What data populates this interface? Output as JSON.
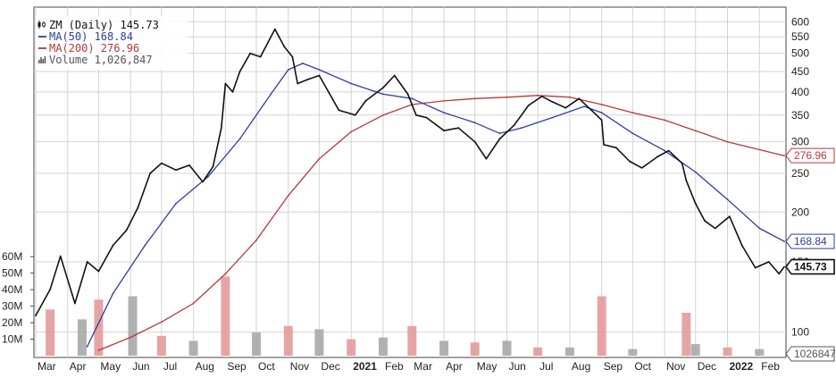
{
  "chart_data": {
    "type": "line",
    "symbol": "ZM",
    "interval": "Daily",
    "last_price": 145.73,
    "legend": [
      {
        "label": "ZM (Daily) 145.73",
        "color": "#111111",
        "icon": "candlestick-icon"
      },
      {
        "label": "MA(50) 168.84",
        "color": "#2c3f9e",
        "icon": "line-dash-icon"
      },
      {
        "label": "MA(200) 276.96",
        "color": "#b33a3a",
        "icon": "line-dash-icon"
      },
      {
        "label": "Volume 1,026,847",
        "color": "#555555",
        "icon": "volume-bars-icon"
      }
    ],
    "price_axis": {
      "scale": "log",
      "range": [
        90,
        620
      ],
      "ticks": [
        100,
        150,
        200,
        250,
        300,
        350,
        400,
        450,
        500,
        550,
        600
      ],
      "tick_labels": [
        "100",
        "150",
        "200",
        "250",
        "300",
        "350",
        "400",
        "450",
        "500",
        "550",
        "600"
      ]
    },
    "volume_axis": {
      "range": [
        0,
        65000000
      ],
      "ticks": [
        10000000,
        20000000,
        30000000,
        40000000,
        50000000,
        60000000
      ],
      "tick_labels": [
        "10M",
        "20M",
        "30M",
        "40M",
        "50M",
        "60M"
      ]
    },
    "x_axis": {
      "range": [
        "2020-03-01",
        "2022-02-25"
      ],
      "ticks": [
        {
          "label": "Mar",
          "date": "2020-03-01",
          "bold": false
        },
        {
          "label": "Apr",
          "date": "2020-04-01",
          "bold": false
        },
        {
          "label": "May",
          "date": "2020-05-01",
          "bold": false
        },
        {
          "label": "Jun",
          "date": "2020-06-01",
          "bold": false
        },
        {
          "label": "Jul",
          "date": "2020-07-01",
          "bold": false
        },
        {
          "label": "Aug",
          "date": "2020-08-01",
          "bold": false
        },
        {
          "label": "Sep",
          "date": "2020-09-01",
          "bold": false
        },
        {
          "label": "Oct",
          "date": "2020-10-01",
          "bold": false
        },
        {
          "label": "Nov",
          "date": "2020-11-01",
          "bold": false
        },
        {
          "label": "Dec",
          "date": "2020-12-01",
          "bold": false
        },
        {
          "label": "2021",
          "date": "2021-01-01",
          "bold": true
        },
        {
          "label": "Feb",
          "date": "2021-02-01",
          "bold": false
        },
        {
          "label": "Mar",
          "date": "2021-03-01",
          "bold": false
        },
        {
          "label": "Apr",
          "date": "2021-04-01",
          "bold": false
        },
        {
          "label": "May",
          "date": "2021-05-01",
          "bold": false
        },
        {
          "label": "Jun",
          "date": "2021-06-01",
          "bold": false
        },
        {
          "label": "Jul",
          "date": "2021-07-01",
          "bold": false
        },
        {
          "label": "Aug",
          "date": "2021-08-01",
          "bold": false
        },
        {
          "label": "Sep",
          "date": "2021-09-01",
          "bold": false
        },
        {
          "label": "Oct",
          "date": "2021-10-01",
          "bold": false
        },
        {
          "label": "Nov",
          "date": "2021-11-01",
          "bold": false
        },
        {
          "label": "Dec",
          "date": "2021-12-01",
          "bold": false
        },
        {
          "label": "2022",
          "date": "2022-01-01",
          "bold": true
        },
        {
          "label": "Feb",
          "date": "2022-02-01",
          "bold": false
        }
      ]
    },
    "series": [
      {
        "name": "ZM (Daily)",
        "kind": "price",
        "color": "#111111",
        "points": [
          {
            "date": "2020-03-01",
            "value": 110
          },
          {
            "date": "2020-03-15",
            "value": 128
          },
          {
            "date": "2020-03-25",
            "value": 155
          },
          {
            "date": "2020-04-08",
            "value": 118
          },
          {
            "date": "2020-04-20",
            "value": 150
          },
          {
            "date": "2020-05-01",
            "value": 142
          },
          {
            "date": "2020-05-15",
            "value": 165
          },
          {
            "date": "2020-05-28",
            "value": 180
          },
          {
            "date": "2020-06-08",
            "value": 205
          },
          {
            "date": "2020-06-20",
            "value": 250
          },
          {
            "date": "2020-07-01",
            "value": 265
          },
          {
            "date": "2020-07-15",
            "value": 255
          },
          {
            "date": "2020-07-28",
            "value": 262
          },
          {
            "date": "2020-08-10",
            "value": 238
          },
          {
            "date": "2020-08-20",
            "value": 260
          },
          {
            "date": "2020-08-28",
            "value": 325
          },
          {
            "date": "2020-09-01",
            "value": 420
          },
          {
            "date": "2020-09-08",
            "value": 400
          },
          {
            "date": "2020-09-15",
            "value": 450
          },
          {
            "date": "2020-09-25",
            "value": 500
          },
          {
            "date": "2020-10-05",
            "value": 490
          },
          {
            "date": "2020-10-19",
            "value": 575
          },
          {
            "date": "2020-10-28",
            "value": 520
          },
          {
            "date": "2020-11-05",
            "value": 490
          },
          {
            "date": "2020-11-10",
            "value": 420
          },
          {
            "date": "2020-11-20",
            "value": 430
          },
          {
            "date": "2020-12-01",
            "value": 440
          },
          {
            "date": "2020-12-10",
            "value": 400
          },
          {
            "date": "2020-12-20",
            "value": 360
          },
          {
            "date": "2021-01-05",
            "value": 350
          },
          {
            "date": "2021-01-15",
            "value": 380
          },
          {
            "date": "2021-02-01",
            "value": 410
          },
          {
            "date": "2021-02-12",
            "value": 440
          },
          {
            "date": "2021-02-25",
            "value": 395
          },
          {
            "date": "2021-03-05",
            "value": 350
          },
          {
            "date": "2021-03-15",
            "value": 345
          },
          {
            "date": "2021-04-01",
            "value": 320
          },
          {
            "date": "2021-04-15",
            "value": 325
          },
          {
            "date": "2021-05-01",
            "value": 300
          },
          {
            "date": "2021-05-12",
            "value": 272
          },
          {
            "date": "2021-05-25",
            "value": 305
          },
          {
            "date": "2021-06-08",
            "value": 330
          },
          {
            "date": "2021-06-22",
            "value": 370
          },
          {
            "date": "2021-07-05",
            "value": 390
          },
          {
            "date": "2021-07-15",
            "value": 378
          },
          {
            "date": "2021-07-28",
            "value": 365
          },
          {
            "date": "2021-08-10",
            "value": 385
          },
          {
            "date": "2021-08-22",
            "value": 360
          },
          {
            "date": "2021-09-01",
            "value": 340
          },
          {
            "date": "2021-09-03",
            "value": 295
          },
          {
            "date": "2021-09-15",
            "value": 290
          },
          {
            "date": "2021-09-28",
            "value": 268
          },
          {
            "date": "2021-10-10",
            "value": 258
          },
          {
            "date": "2021-10-25",
            "value": 275
          },
          {
            "date": "2021-11-05",
            "value": 285
          },
          {
            "date": "2021-11-18",
            "value": 265
          },
          {
            "date": "2021-11-22",
            "value": 240
          },
          {
            "date": "2021-12-01",
            "value": 210
          },
          {
            "date": "2021-12-10",
            "value": 190
          },
          {
            "date": "2021-12-20",
            "value": 182
          },
          {
            "date": "2022-01-03",
            "value": 195
          },
          {
            "date": "2022-01-15",
            "value": 165
          },
          {
            "date": "2022-01-28",
            "value": 145
          },
          {
            "date": "2022-02-10",
            "value": 150
          },
          {
            "date": "2022-02-20",
            "value": 140
          },
          {
            "date": "2022-02-25",
            "value": 145.73
          }
        ]
      },
      {
        "name": "MA(50)",
        "kind": "ma",
        "color": "#2c3f9e",
        "points": [
          {
            "date": "2020-04-20",
            "value": 92
          },
          {
            "date": "2020-05-15",
            "value": 125
          },
          {
            "date": "2020-06-15",
            "value": 165
          },
          {
            "date": "2020-07-15",
            "value": 210
          },
          {
            "date": "2020-08-15",
            "value": 245
          },
          {
            "date": "2020-09-15",
            "value": 305
          },
          {
            "date": "2020-10-15",
            "value": 395
          },
          {
            "date": "2020-11-01",
            "value": 455
          },
          {
            "date": "2020-11-15",
            "value": 472
          },
          {
            "date": "2020-12-01",
            "value": 455
          },
          {
            "date": "2021-01-01",
            "value": 420
          },
          {
            "date": "2021-02-01",
            "value": 395
          },
          {
            "date": "2021-03-01",
            "value": 385
          },
          {
            "date": "2021-04-01",
            "value": 355
          },
          {
            "date": "2021-05-01",
            "value": 335
          },
          {
            "date": "2021-05-25",
            "value": 315
          },
          {
            "date": "2021-06-15",
            "value": 325
          },
          {
            "date": "2021-07-15",
            "value": 345
          },
          {
            "date": "2021-08-15",
            "value": 368
          },
          {
            "date": "2021-09-01",
            "value": 355
          },
          {
            "date": "2021-10-01",
            "value": 315
          },
          {
            "date": "2021-11-01",
            "value": 285
          },
          {
            "date": "2021-12-01",
            "value": 252
          },
          {
            "date": "2022-01-01",
            "value": 215
          },
          {
            "date": "2022-02-01",
            "value": 182
          },
          {
            "date": "2022-02-25",
            "value": 168.84
          }
        ]
      },
      {
        "name": "MA(200)",
        "kind": "ma",
        "color": "#b33a3a",
        "points": [
          {
            "date": "2020-05-01",
            "value": 90
          },
          {
            "date": "2020-06-01",
            "value": 97
          },
          {
            "date": "2020-07-01",
            "value": 106
          },
          {
            "date": "2020-08-01",
            "value": 118
          },
          {
            "date": "2020-09-01",
            "value": 140
          },
          {
            "date": "2020-10-01",
            "value": 170
          },
          {
            "date": "2020-11-01",
            "value": 220
          },
          {
            "date": "2020-12-01",
            "value": 272
          },
          {
            "date": "2021-01-01",
            "value": 318
          },
          {
            "date": "2021-02-01",
            "value": 350
          },
          {
            "date": "2021-03-01",
            "value": 372
          },
          {
            "date": "2021-04-01",
            "value": 380
          },
          {
            "date": "2021-05-01",
            "value": 385
          },
          {
            "date": "2021-06-01",
            "value": 388
          },
          {
            "date": "2021-07-01",
            "value": 392
          },
          {
            "date": "2021-08-01",
            "value": 388
          },
          {
            "date": "2021-09-01",
            "value": 372
          },
          {
            "date": "2021-10-01",
            "value": 355
          },
          {
            "date": "2021-11-01",
            "value": 340
          },
          {
            "date": "2021-12-01",
            "value": 320
          },
          {
            "date": "2022-01-01",
            "value": 300
          },
          {
            "date": "2022-02-25",
            "value": 276.96
          }
        ]
      }
    ],
    "volume": [
      {
        "date": "2020-03-15",
        "value": 28000000
      },
      {
        "date": "2020-04-15",
        "value": 22000000
      },
      {
        "date": "2020-05-01",
        "value": 34000000
      },
      {
        "date": "2020-06-03",
        "value": 36000000
      },
      {
        "date": "2020-07-01",
        "value": 12000000
      },
      {
        "date": "2020-08-01",
        "value": 9000000
      },
      {
        "date": "2020-09-01",
        "value": 48000000
      },
      {
        "date": "2020-10-01",
        "value": 14000000
      },
      {
        "date": "2020-11-01",
        "value": 18000000
      },
      {
        "date": "2020-12-01",
        "value": 16000000
      },
      {
        "date": "2021-01-01",
        "value": 10000000
      },
      {
        "date": "2021-02-01",
        "value": 11000000
      },
      {
        "date": "2021-03-01",
        "value": 18000000
      },
      {
        "date": "2021-04-01",
        "value": 9000000
      },
      {
        "date": "2021-05-01",
        "value": 8000000
      },
      {
        "date": "2021-06-01",
        "value": 9000000
      },
      {
        "date": "2021-07-01",
        "value": 5000000
      },
      {
        "date": "2021-08-01",
        "value": 5000000
      },
      {
        "date": "2021-09-01",
        "value": 36000000
      },
      {
        "date": "2021-10-01",
        "value": 4000000
      },
      {
        "date": "2021-11-22",
        "value": 26000000
      },
      {
        "date": "2021-12-01",
        "value": 7000000
      },
      {
        "date": "2022-01-01",
        "value": 5000000
      },
      {
        "date": "2022-02-01",
        "value": 4000000
      }
    ],
    "price_tags": [
      {
        "label": "276.96",
        "value": 276.96,
        "kind": "ma200",
        "color": "#b33a3a"
      },
      {
        "label": "168.84",
        "value": 168.84,
        "kind": "ma50",
        "color": "#2c3f9e"
      },
      {
        "label": "145.73",
        "value": 145.73,
        "kind": "last",
        "color": "#111111"
      }
    ],
    "volume_tag": {
      "label": "1026847",
      "color": "#555555"
    },
    "grid": true
  }
}
